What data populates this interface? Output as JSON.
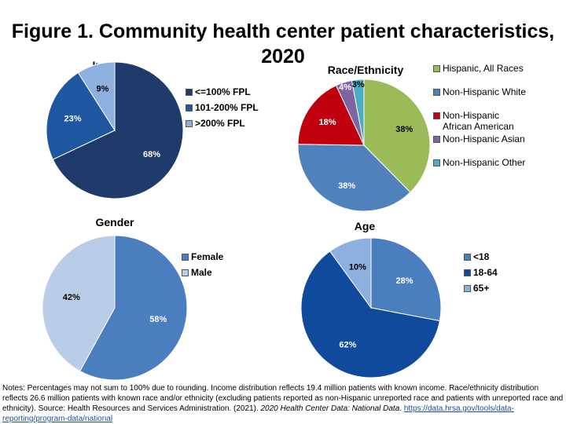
{
  "title": "Figure 1. Community health center patient characteristics, 2020",
  "chart_data": [
    {
      "type": "pie",
      "title": "Income",
      "categories": [
        "<=100% FPL",
        "101-200% FPL",
        ">200% FPL"
      ],
      "values": [
        68,
        23,
        9
      ],
      "data_labels": [
        "68%",
        "23%",
        "9%"
      ],
      "colors": [
        "#1f3b6b",
        "#1e56a0",
        "#8eb0de"
      ],
      "label_colors": [
        "#ffffff",
        "#ffffff",
        "#000000"
      ],
      "legend_position": "right"
    },
    {
      "type": "pie",
      "title": "Race/Ethnicity",
      "categories": [
        "Hispanic, All Races",
        "Non-Hispanic White",
        "Non-Hispanic African American",
        "Non-Hispanic Asian",
        "Non-Hispanic Other"
      ],
      "values": [
        38,
        38,
        18,
        4,
        3
      ],
      "data_labels": [
        "38%",
        "38%",
        "18%",
        "4%",
        "3%"
      ],
      "colors": [
        "#9bbb59",
        "#4f81bd",
        "#c0000c",
        "#8064a2",
        "#4bacc6"
      ],
      "label_colors": [
        "#000000",
        "#ffffff",
        "#ffffff",
        "#ffffff",
        "#000000"
      ],
      "legend_position": "right"
    },
    {
      "type": "pie",
      "title": "Gender",
      "categories": [
        "Female",
        "Male"
      ],
      "values": [
        58,
        42
      ],
      "data_labels": [
        "58%",
        "42%"
      ],
      "colors": [
        "#4a7ebf",
        "#b9cde8"
      ],
      "label_colors": [
        "#ffffff",
        "#000000"
      ],
      "legend_position": "right"
    },
    {
      "type": "pie",
      "title": "Age",
      "categories": [
        "<18",
        "18-64",
        "65+"
      ],
      "values": [
        28,
        62,
        10
      ],
      "data_labels": [
        "28%",
        "62%",
        "10%"
      ],
      "colors": [
        "#4a7ebf",
        "#0f4a9c",
        "#8eb0de"
      ],
      "label_colors": [
        "#ffffff",
        "#ffffff",
        "#000000"
      ],
      "legend_position": "right"
    }
  ],
  "notes": {
    "text": "Notes: Percentages may not sum to 100% due to rounding. Income distribution reflects 19.4 million patients with known income. Race/ethnicity distribution reflects 26.6  million patients with known race and/or ethnicity (excluding patients reported as non-Hispanic unreported race and patients with unreported race and ethnicity). Source: Health Resources and Services Administration. (2021). ",
    "italic": "2020 Health Center Data: National Data",
    "after": ". ",
    "link": "https://data.hrsa.gov/tools/data-reporting/program-data/national"
  }
}
